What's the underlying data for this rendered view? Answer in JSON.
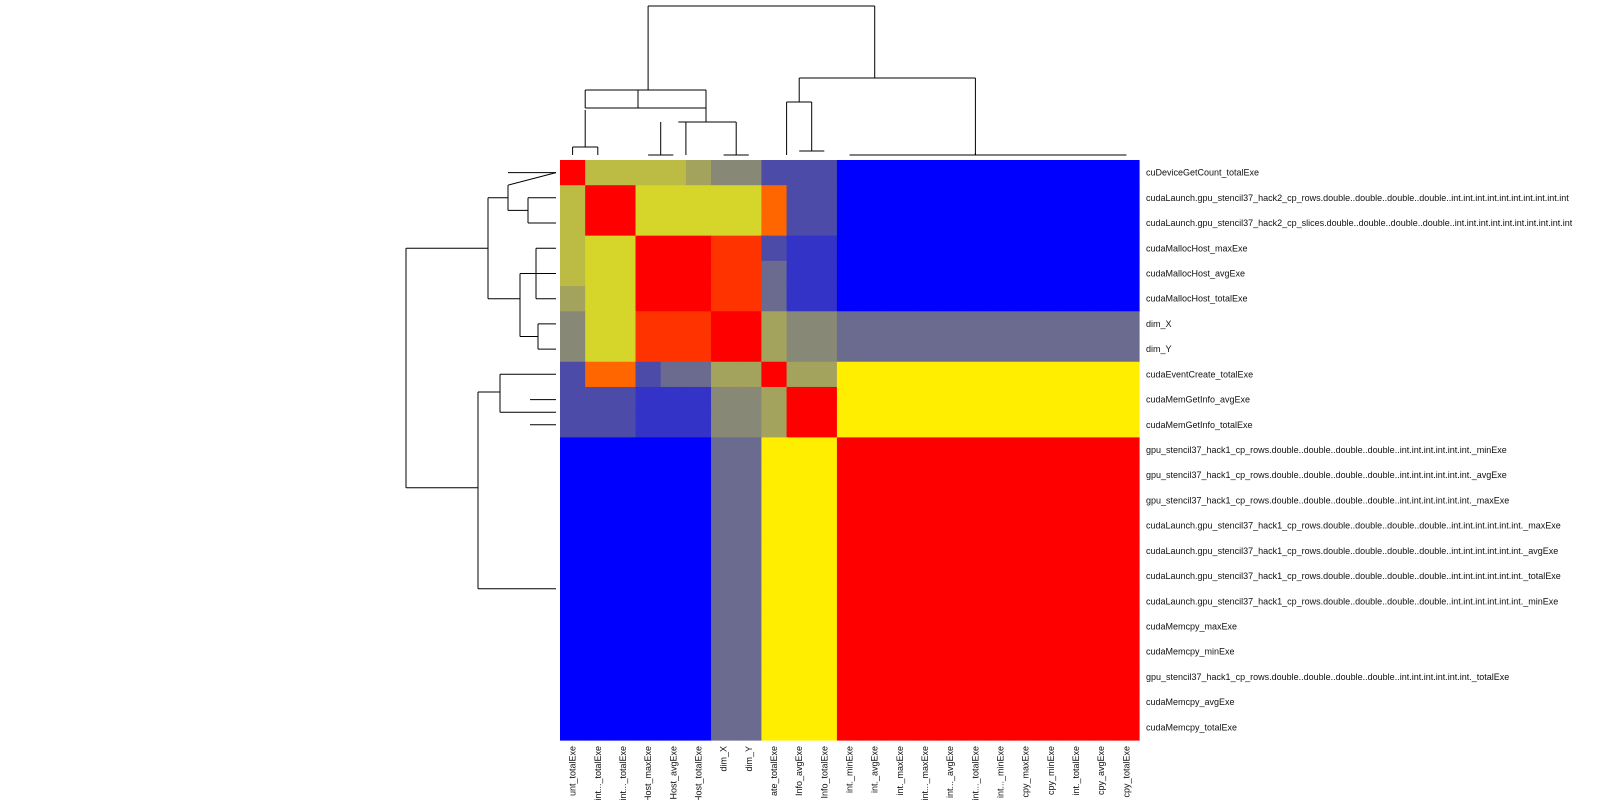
{
  "chart_data": {
    "type": "heatmap",
    "title": "",
    "xlabel": "",
    "ylabel": "",
    "row_labels": [
      "cuDeviceGetCount_totalExe",
      "cudaLaunch.gpu_stencil37_hack2_cp_rows.double..double..double..double..int.int.int.int.int.int.int.int.int.int",
      "cudaLaunch.gpu_stencil37_hack2_cp_slices.double..double..double..double..int.int.int.int.int.int.int.int.int.int",
      "cudaMallocHost_maxExe",
      "cudaMallocHost_avgExe",
      "cudaMallocHost_totalExe",
      "dim_X",
      "dim_Y",
      "cudaEventCreate_totalExe",
      "cudaMemGetInfo_avgExe",
      "cudaMemGetInfo_totalExe",
      "gpu_stencil37_hack1_cp_rows.double..double..double..double..int.int.int.int.int.int._minExe",
      "gpu_stencil37_hack1_cp_rows.double..double..double..double..int.int.int.int.int.int._avgExe",
      "gpu_stencil37_hack1_cp_rows.double..double..double..double..int.int.int.int.int.int._maxExe",
      "cudaLaunch.gpu_stencil37_hack1_cp_rows.double..double..double..double..int.int.int.int.int.int._maxExe",
      "cudaLaunch.gpu_stencil37_hack1_cp_rows.double..double..double..double..int.int.int.int.int.int._avgExe",
      "cudaLaunch.gpu_stencil37_hack1_cp_rows.double..double..double..double..int.int.int.int.int.int._totalExe",
      "cudaLaunch.gpu_stencil37_hack1_cp_rows.double..double..double..double..int.int.int.int.int.int._minExe",
      "cudaMemcpy_maxExe",
      "cudaMemcpy_minExe",
      "gpu_stencil37_hack1_cp_rows.double..double..double..double..int.int.int.int.int.int._totalExe",
      "cudaMemcpy_avgExe",
      "cudaMemcpy_totalExe"
    ],
    "col_labels": [
      "unt_totalExe",
      "int..._totalExe",
      "int..._totalExe",
      "Host_maxExe",
      "Host_avgExe",
      "Host_totalExe",
      "dim_X",
      "dim_Y",
      "ate_totalExe",
      "Info_avgExe",
      "Info_totalExe",
      "int._minExe",
      "int._avgExe",
      "int._maxExe",
      "int..._maxExe",
      "int..._avgExe",
      "int..._totalExe",
      "int..._minExe",
      "cpy_maxExe",
      "cpy_minExe",
      "int._totalExe",
      "cpy_avgExe",
      "cpy_totalExe"
    ],
    "palette": {
      "R": "#ff0000",
      "O": "#ff3300",
      "K": "#ff6600",
      "Y": "#ffee00",
      "L": "#d6d62a",
      "G": "#bcbc45",
      "H": "#a3a35e",
      "T": "#888877",
      "S": "#6b6b8f",
      "P": "#4c4ca8",
      "V": "#3333c8",
      "B": "#0000ff"
    },
    "cells": [
      "RGGGGHTTPPPBBBBBBBBBBBB",
      "GRRLLLLLKPPBBBBBBBBBBBB",
      "GRRLLLLLKPPBBBBBBBBBBBB",
      "GLLRRROOPVVBBBBBBBBBBBB",
      "GLLRRROOSVVBBBBBBBBBBBB",
      "HLLRRROOSVVBBBBBBBBBBBB",
      "TLLOOORRHTTSSSSSSSSSSSS",
      "TLLOOORRHTTSSSSSSSSSSSS",
      "PKKPSSHHRHHYYYYYYYYYYYY",
      "PPPVVVTTHRRYYYYYYYYYYYY",
      "PPPVVVTTHRRYYYYYYYYYYYY",
      "BBBBBBSSYYYRRRRRRRRRRRR",
      "BBBBBBSSYYYRRRRRRRRRRRR",
      "BBBBBBSSYYYRRRRRRRRRRRR",
      "BBBBBBSSYYYRRRRRRRRRRRR",
      "BBBBBBSSYYYRRRRRRRRRRRR",
      "BBBBBBSSYYYRRRRRRRRRRRR",
      "BBBBBBSSYYYRRRRRRRRRRRR",
      "BBBBBBSSYYYRRRRRRRRRRRR",
      "BBBBBBSSYYYRRRRRRRRRRRR",
      "BBBBBBSSYYYRRRRRRRRRRRR",
      "BBBBBBSSYYYRRRRRRRRRRRR",
      "BBBBBBSSYYYRRRRRRRRRRRR"
    ],
    "legend": "none",
    "grid": false
  }
}
